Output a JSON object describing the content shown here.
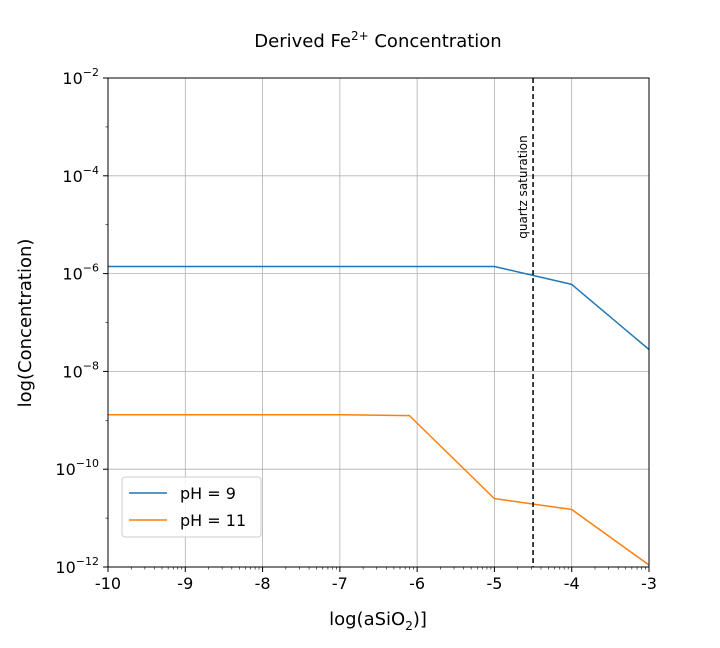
{
  "chart_data": {
    "type": "line",
    "title": "Derived Fe",
    "title_sup": "2+",
    "title_rest": " Concentration",
    "xlabel": "log(aSiO",
    "xlabel_sub": "2",
    "xlabel_rest": ")]",
    "ylabel": "log(Concentration)",
    "xlim": [
      -10,
      -3
    ],
    "ylim": [
      -12,
      -2
    ],
    "y_scale": "log",
    "grid": true,
    "legend_placement": "lower-left",
    "x_ticks": [
      "-10",
      "-9",
      "-8",
      "-7",
      "-6",
      "-5",
      "-4",
      "-3"
    ],
    "y_ticks": [
      {
        "base": "10",
        "exp": "−12"
      },
      {
        "base": "10",
        "exp": "−10"
      },
      {
        "base": "10",
        "exp": "−8"
      },
      {
        "base": "10",
        "exp": "−6"
      },
      {
        "base": "10",
        "exp": "−4"
      },
      {
        "base": "10",
        "exp": "−2"
      }
    ],
    "series": [
      {
        "name": "pH = 9",
        "color": "#1f77b4",
        "x": [
          -10,
          -7,
          -5,
          -4,
          -3
        ],
        "y": [
          1.4e-06,
          1.4e-06,
          1.4e-06,
          6e-07,
          2.8e-08
        ]
      },
      {
        "name": "pH = 11",
        "color": "#ff7f0e",
        "x": [
          -10,
          -7,
          -6.1,
          -5,
          -4,
          -3
        ],
        "y": [
          1.3e-09,
          1.3e-09,
          1.25e-09,
          2.5e-11,
          1.5e-11,
          1.1e-12
        ]
      }
    ],
    "annotations": [
      {
        "type": "vline",
        "x": -4.5,
        "style": "dashed",
        "color": "#000000",
        "label": "quartz saturation"
      }
    ]
  }
}
